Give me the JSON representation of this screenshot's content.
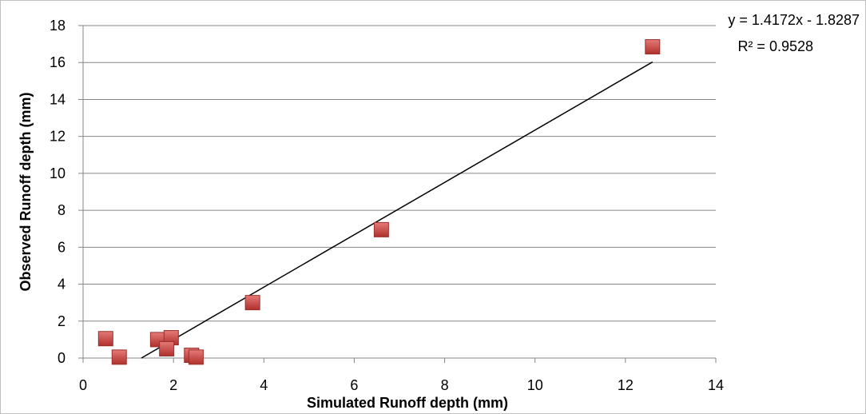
{
  "chart_data": {
    "type": "scatter",
    "title": "",
    "xlabel": "Simulated Runoff depth (mm)",
    "ylabel": "Observed Runoff depth (mm)",
    "xlim": [
      0,
      14
    ],
    "ylim": [
      0,
      18
    ],
    "x_ticks": [
      0,
      2,
      4,
      6,
      8,
      10,
      12,
      14
    ],
    "y_ticks": [
      0,
      2,
      4,
      6,
      8,
      10,
      12,
      14,
      16,
      18
    ],
    "grid": "horizontal major gridlines",
    "legend": "none",
    "series": [
      {
        "marker": "square",
        "color": "#c0504d",
        "points": [
          {
            "x": 0.5,
            "y": 1.05
          },
          {
            "x": 0.8,
            "y": 0.05
          },
          {
            "x": 1.65,
            "y": 1.0
          },
          {
            "x": 1.95,
            "y": 1.1
          },
          {
            "x": 1.85,
            "y": 0.5
          },
          {
            "x": 2.4,
            "y": 0.15
          },
          {
            "x": 2.5,
            "y": 0.05
          },
          {
            "x": 3.75,
            "y": 3.0
          },
          {
            "x": 6.6,
            "y": 6.95
          },
          {
            "x": 12.6,
            "y": 16.85
          }
        ]
      }
    ],
    "trendline": {
      "type": "linear",
      "slope": 1.4172,
      "intercept": -1.8287,
      "x_range": [
        1.29,
        12.6
      ],
      "color": "#000000",
      "equation": "y = 1.4172x - 1.8287",
      "r_squared": "R² = 0.9528"
    }
  }
}
